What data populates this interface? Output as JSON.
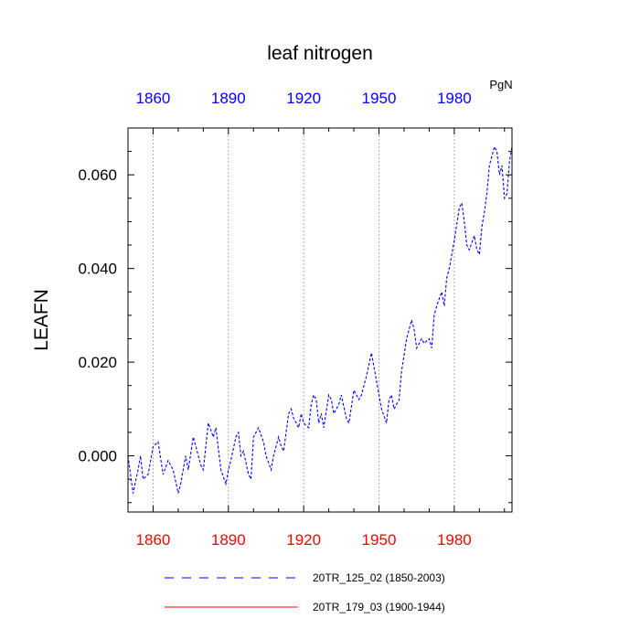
{
  "chart_data": {
    "type": "line",
    "title": "leaf nitrogen",
    "ylabel": "LEAFN",
    "units_label": "PgN",
    "xlim": [
      1850,
      2003
    ],
    "ylim": [
      -0.012,
      0.07
    ],
    "xticks": [
      1860,
      1890,
      1920,
      1950,
      1980
    ],
    "xtick_labels": [
      "1860",
      "1890",
      "1920",
      "1950",
      "1980"
    ],
    "yticks": [
      0.0,
      0.02,
      0.04,
      0.06
    ],
    "ytick_labels": [
      "0.000",
      "0.020",
      "0.040",
      "0.060"
    ],
    "bottom_axis_color": "#ff0000",
    "top_axis_color": "#0000ff",
    "grid": "vertical dotted at x ticks",
    "legend_placement": "bottom-below-plot",
    "series": [
      {
        "name": "20TR_125_02 (1850-2003)",
        "color": "#0000ff",
        "dash": "dashed",
        "x": [
          1850,
          1852,
          1854,
          1855,
          1856,
          1858,
          1860,
          1862,
          1864,
          1866,
          1868,
          1870,
          1871,
          1873,
          1874,
          1876,
          1878,
          1879,
          1880,
          1882,
          1884,
          1885,
          1887,
          1889,
          1890,
          1891,
          1893,
          1894,
          1895,
          1896,
          1898,
          1899,
          1900,
          1902,
          1904,
          1905,
          1907,
          1908,
          1910,
          1911,
          1912,
          1914,
          1915,
          1916,
          1918,
          1919,
          1920,
          1922,
          1923,
          1924,
          1925,
          1926,
          1927,
          1928,
          1930,
          1931,
          1932,
          1934,
          1935,
          1937,
          1938,
          1940,
          1942,
          1943,
          1945,
          1947,
          1948,
          1949,
          1951,
          1953,
          1954,
          1955,
          1956,
          1958,
          1959,
          1961,
          1963,
          1964,
          1965,
          1967,
          1968,
          1970,
          1971,
          1972,
          1973,
          1975,
          1976,
          1977,
          1978,
          1980,
          1982,
          1983,
          1984,
          1985,
          1986,
          1988,
          1989,
          1990,
          1991,
          1992,
          1993,
          1994,
          1996,
          1997,
          1998,
          1999,
          2000,
          2001,
          2002,
          2003
        ],
        "y": [
          0.0,
          -0.008,
          -0.003,
          0.0,
          -0.005,
          -0.004,
          0.002,
          0.003,
          -0.004,
          -0.001,
          -0.003,
          -0.008,
          -0.006,
          0.0,
          -0.003,
          0.004,
          0.0,
          -0.002,
          -0.003,
          0.007,
          0.004,
          0.006,
          -0.003,
          -0.006,
          -0.003,
          -0.001,
          0.004,
          0.005,
          0.0,
          0.001,
          -0.004,
          -0.005,
          0.004,
          0.006,
          0.003,
          0.0,
          -0.003,
          0.0,
          0.004,
          0.002,
          0.001,
          0.009,
          0.01,
          0.008,
          0.006,
          0.009,
          0.007,
          0.006,
          0.011,
          0.013,
          0.012,
          0.007,
          0.009,
          0.006,
          0.013,
          0.012,
          0.009,
          0.011,
          0.013,
          0.008,
          0.007,
          0.014,
          0.012,
          0.013,
          0.017,
          0.022,
          0.019,
          0.016,
          0.01,
          0.007,
          0.012,
          0.013,
          0.01,
          0.012,
          0.018,
          0.025,
          0.029,
          0.027,
          0.023,
          0.025,
          0.024,
          0.025,
          0.023,
          0.03,
          0.032,
          0.035,
          0.032,
          0.038,
          0.04,
          0.046,
          0.053,
          0.054,
          0.05,
          0.045,
          0.044,
          0.047,
          0.044,
          0.043,
          0.049,
          0.052,
          0.056,
          0.062,
          0.066,
          0.065,
          0.06,
          0.062,
          0.055,
          0.056,
          0.063,
          0.066
        ]
      },
      {
        "name": "20TR_179_03 (1900-1944)",
        "color": "#ff0000",
        "dash": "solid",
        "x": [],
        "y": []
      }
    ]
  }
}
